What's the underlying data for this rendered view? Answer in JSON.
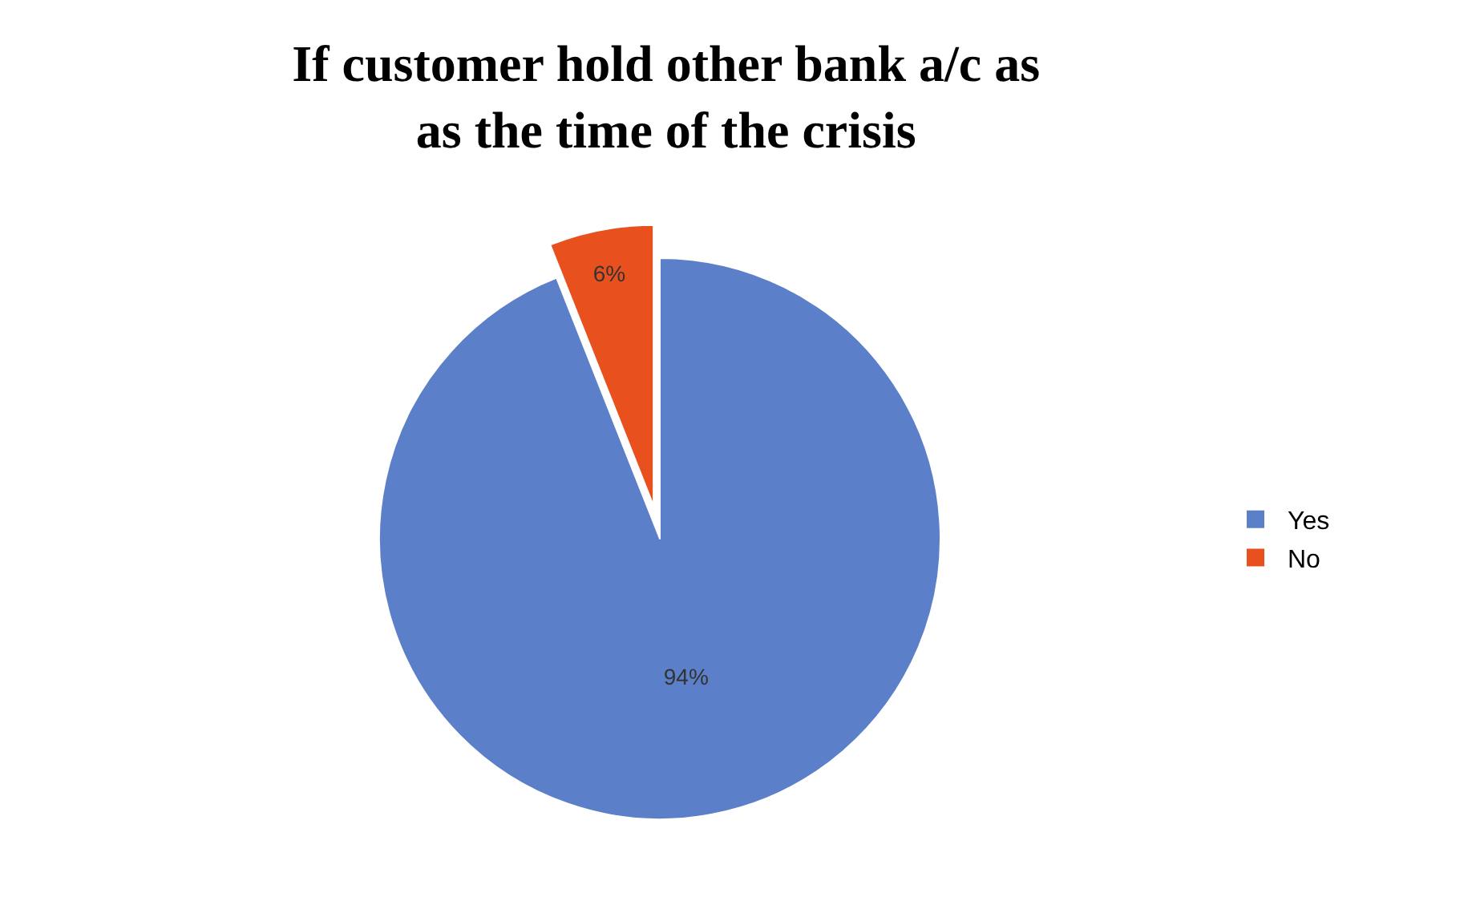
{
  "chart_data": {
    "type": "pie",
    "title": "If customer hold other bank a/c as\nas the time of the crisis",
    "categories": [
      "Yes",
      "No"
    ],
    "values": [
      94,
      6
    ],
    "colors": [
      "#5b7fc8",
      "#e8501e"
    ],
    "value_labels": [
      "94%",
      "6%"
    ],
    "legend": "right"
  }
}
